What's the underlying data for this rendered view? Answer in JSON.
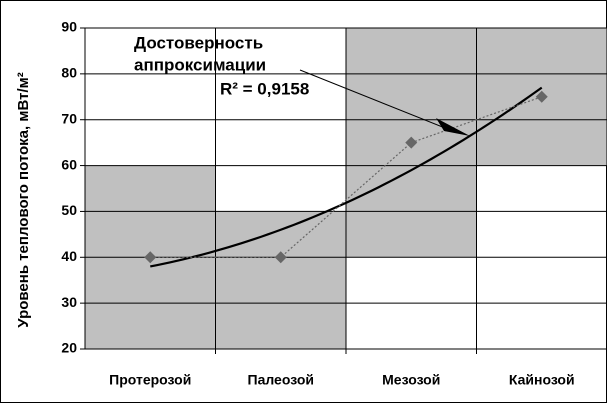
{
  "chart_data": {
    "type": "line",
    "y_label": "Уровень теплового потока, мВт/м²",
    "categories": [
      "Протерозой",
      "Палеозой",
      "Мезозой",
      "Кайнозой"
    ],
    "values": [
      40,
      40,
      65,
      75
    ],
    "color": "#666666",
    "ranges": [
      [
        20,
        60
      ],
      [
        20,
        50
      ],
      [
        40,
        90
      ],
      [
        60,
        90
      ]
    ],
    "range_color": "#c0c0c0",
    "trendline": "poly2",
    "annotation": [
      "Достоверность",
      "аппроксимации"
    ],
    "r2_label": "R² = 0,9158",
    "ylim": [
      20,
      90
    ],
    "yticks": [
      20,
      30,
      40,
      50,
      60,
      70,
      80,
      90
    ],
    "grid": true
  }
}
